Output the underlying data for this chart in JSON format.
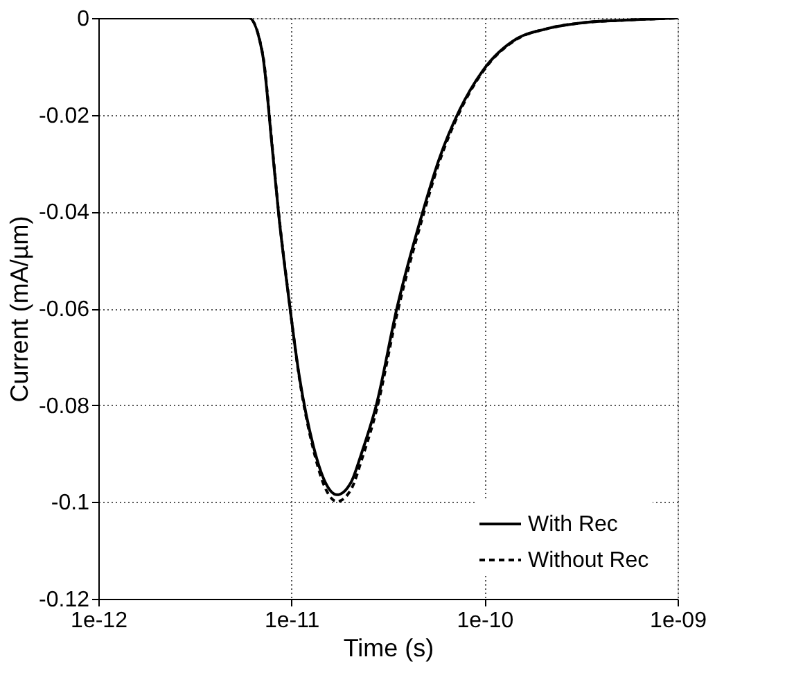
{
  "chart_data": {
    "type": "line",
    "xlabel": "Time (s)",
    "ylabel": "Current (mA/µm)",
    "x": [
      1e-12,
      6.03e-12,
      7.08e-12,
      7.94e-12,
      8.61e-12,
      9.62e-12,
      1.1e-11,
      1.3e-11,
      1.5e-11,
      1.72e-11,
      2.03e-11,
      2.33e-11,
      2.75e-11,
      3.52e-11,
      4.76e-11,
      5.79e-11,
      7.43e-11,
      9.79e-11,
      1.48e-10,
      2.06e-10,
      3.39e-10,
      5e-10,
      1e-09
    ],
    "series": [
      {
        "name": "With Rec",
        "color": "#000000",
        "line_style": "solid",
        "values": [
          0,
          0,
          -0.0074,
          -0.0266,
          -0.041,
          -0.057,
          -0.0742,
          -0.0885,
          -0.096,
          -0.0985,
          -0.096,
          -0.0894,
          -0.08,
          -0.0599,
          -0.0404,
          -0.0294,
          -0.019,
          -0.0109,
          -0.0042,
          -0.0023,
          -0.0009,
          -0.0005,
          0
        ]
      },
      {
        "name": "Without Rec",
        "color": "#000000",
        "line_style": "dashed",
        "values": [
          0,
          0,
          -0.0072,
          -0.0262,
          -0.0407,
          -0.0568,
          -0.0745,
          -0.0892,
          -0.0972,
          -0.0999,
          -0.0975,
          -0.0908,
          -0.0812,
          -0.0612,
          -0.0414,
          -0.0301,
          -0.0194,
          -0.0111,
          -0.0043,
          -0.0023,
          -0.0009,
          -0.0005,
          0
        ]
      }
    ],
    "log": "x",
    "xlim": [
      1e-12,
      1e-09
    ],
    "xticks": [
      {
        "value": 1e-12,
        "label": "1e-12"
      },
      {
        "value": 1e-11,
        "label": "1e-11"
      },
      {
        "value": 1e-10,
        "label": "1e-10"
      },
      {
        "value": 1e-09,
        "label": "1e-09"
      }
    ],
    "ylim": [
      -0.12,
      0
    ],
    "yticks": [
      0,
      -0.02,
      -0.04,
      -0.06,
      -0.08,
      -0.1,
      -0.12
    ],
    "grid": true,
    "legend": "bottom right",
    "marker": "none"
  }
}
